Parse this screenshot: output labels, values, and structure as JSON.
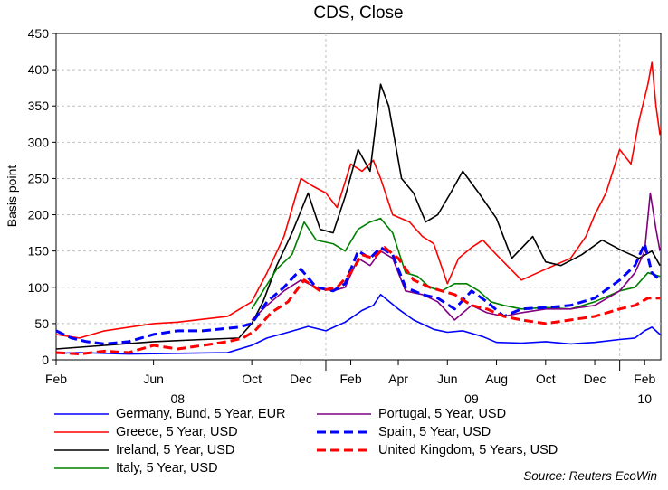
{
  "chart_data": {
    "type": "line",
    "title": "CDS, Close",
    "ylabel": "Basis point",
    "ylim": [
      0,
      450
    ],
    "yticks": [
      0,
      50,
      100,
      150,
      200,
      250,
      300,
      350,
      400,
      450
    ],
    "xlim": [
      "2008-02-01",
      "2010-02-21"
    ],
    "xticks": [
      {
        "date": "2008-02-01",
        "label": "Feb"
      },
      {
        "date": "2008-06-01",
        "label": "Jun"
      },
      {
        "date": "2008-10-01",
        "label": "Oct"
      },
      {
        "date": "2008-12-01",
        "label": "Dec"
      },
      {
        "date": "2009-02-01",
        "label": "Feb"
      },
      {
        "date": "2009-04-01",
        "label": "Apr"
      },
      {
        "date": "2009-06-01",
        "label": "Jun"
      },
      {
        "date": "2009-08-01",
        "label": "Aug"
      },
      {
        "date": "2009-10-01",
        "label": "Oct"
      },
      {
        "date": "2009-12-01",
        "label": "Dec"
      },
      {
        "date": "2010-02-01",
        "label": "Feb"
      }
    ],
    "year_labels": [
      {
        "date": "2008-07-01",
        "label": "08"
      },
      {
        "date": "2009-07-01",
        "label": "09"
      },
      {
        "date": "2010-02-01",
        "label": "10"
      }
    ],
    "grid": true,
    "legend_position": "bottom",
    "series": [
      {
        "name": "Germany, Bund, 5 Year, EUR",
        "color": "#0000ff",
        "style": "solid",
        "x": [
          "2008-02-01",
          "2008-03-01",
          "2008-05-01",
          "2008-07-01",
          "2008-09-01",
          "2008-10-01",
          "2008-10-20",
          "2008-11-15",
          "2008-12-10",
          "2009-01-01",
          "2009-01-25",
          "2009-02-15",
          "2009-03-01",
          "2009-03-10",
          "2009-04-01",
          "2009-04-20",
          "2009-05-15",
          "2009-06-01",
          "2009-06-20",
          "2009-07-15",
          "2009-08-01",
          "2009-09-01",
          "2009-10-01",
          "2009-11-01",
          "2009-12-01",
          "2010-01-01",
          "2010-01-20",
          "2010-02-01",
          "2010-02-10",
          "2010-02-20"
        ],
        "y": [
          9,
          10,
          8,
          9,
          10,
          20,
          30,
          38,
          46,
          40,
          52,
          68,
          75,
          90,
          70,
          55,
          42,
          38,
          40,
          32,
          24,
          23,
          25,
          22,
          24,
          28,
          30,
          40,
          45,
          35
        ]
      },
      {
        "name": "Greece, 5 Year, USD",
        "color": "#ff0000",
        "style": "solid",
        "x": [
          "2008-02-01",
          "2008-03-01",
          "2008-04-01",
          "2008-06-01",
          "2008-07-01",
          "2008-09-01",
          "2008-10-01",
          "2008-10-20",
          "2008-11-10",
          "2008-12-01",
          "2008-12-15",
          "2009-01-01",
          "2009-01-15",
          "2009-02-01",
          "2009-02-15",
          "2009-03-01",
          "2009-03-10",
          "2009-03-25",
          "2009-04-15",
          "2009-05-01",
          "2009-05-15",
          "2009-06-01",
          "2009-06-15",
          "2009-07-01",
          "2009-07-15",
          "2009-08-01",
          "2009-09-01",
          "2009-10-01",
          "2009-11-01",
          "2009-11-20",
          "2009-12-01",
          "2009-12-15",
          "2010-01-01",
          "2010-01-15",
          "2010-01-25",
          "2010-02-05",
          "2010-02-10",
          "2010-02-15",
          "2010-02-20"
        ],
        "y": [
          35,
          30,
          40,
          50,
          52,
          60,
          80,
          120,
          170,
          250,
          240,
          230,
          210,
          270,
          260,
          275,
          250,
          200,
          190,
          170,
          160,
          105,
          140,
          155,
          165,
          145,
          110,
          125,
          140,
          170,
          200,
          230,
          290,
          270,
          330,
          380,
          410,
          350,
          310
        ]
      },
      {
        "name": "Ireland, 5 Year, USD",
        "color": "#000000",
        "style": "solid",
        "x": [
          "2008-02-01",
          "2008-04-01",
          "2008-06-01",
          "2008-08-01",
          "2008-09-15",
          "2008-10-01",
          "2008-10-15",
          "2008-11-01",
          "2008-11-20",
          "2008-12-10",
          "2008-12-25",
          "2009-01-10",
          "2009-01-25",
          "2009-02-10",
          "2009-02-25",
          "2009-03-10",
          "2009-03-20",
          "2009-04-05",
          "2009-04-20",
          "2009-05-05",
          "2009-05-20",
          "2009-06-05",
          "2009-06-20",
          "2009-07-10",
          "2009-08-01",
          "2009-08-20",
          "2009-09-15",
          "2009-10-01",
          "2009-10-20",
          "2009-11-15",
          "2009-12-10",
          "2010-01-05",
          "2010-01-25",
          "2010-02-10",
          "2010-02-20"
        ],
        "y": [
          15,
          20,
          25,
          28,
          30,
          50,
          80,
          130,
          175,
          230,
          180,
          175,
          225,
          290,
          260,
          380,
          350,
          250,
          230,
          190,
          200,
          230,
          260,
          230,
          195,
          140,
          170,
          135,
          130,
          145,
          165,
          150,
          140,
          150,
          130
        ]
      },
      {
        "name": "Italy, 5 Year, USD",
        "color": "#008000",
        "style": "solid",
        "x": [
          "2008-10-01",
          "2008-10-15",
          "2008-11-01",
          "2008-11-20",
          "2008-12-05",
          "2008-12-20",
          "2009-01-10",
          "2009-01-25",
          "2009-02-10",
          "2009-02-25",
          "2009-03-10",
          "2009-03-25",
          "2009-04-10",
          "2009-04-25",
          "2009-05-10",
          "2009-05-25",
          "2009-06-10",
          "2009-06-25",
          "2009-07-10",
          "2009-07-25",
          "2009-08-10",
          "2009-09-01",
          "2009-10-01",
          "2009-11-01",
          "2009-12-01",
          "2010-01-01",
          "2010-01-20",
          "2010-02-05",
          "2010-02-20"
        ],
        "y": [
          70,
          95,
          125,
          145,
          190,
          165,
          160,
          150,
          180,
          190,
          195,
          175,
          120,
          115,
          100,
          95,
          105,
          105,
          95,
          80,
          75,
          70,
          72,
          70,
          80,
          95,
          100,
          120,
          115
        ]
      },
      {
        "name": "Portugal, 5 Year, USD",
        "color": "#800080",
        "style": "solid",
        "x": [
          "2008-10-01",
          "2008-10-20",
          "2008-11-10",
          "2008-12-01",
          "2008-12-20",
          "2009-01-10",
          "2009-01-25",
          "2009-02-10",
          "2009-02-25",
          "2009-03-10",
          "2009-03-25",
          "2009-04-10",
          "2009-05-01",
          "2009-05-20",
          "2009-06-10",
          "2009-07-01",
          "2009-07-20",
          "2009-08-10",
          "2009-09-01",
          "2009-10-01",
          "2009-11-01",
          "2009-12-01",
          "2010-01-01",
          "2010-01-20",
          "2010-02-01",
          "2010-02-08",
          "2010-02-15",
          "2010-02-20"
        ],
        "y": [
          55,
          75,
          95,
          110,
          100,
          95,
          100,
          140,
          130,
          150,
          140,
          95,
          90,
          80,
          55,
          75,
          65,
          60,
          65,
          70,
          70,
          75,
          95,
          120,
          150,
          230,
          180,
          150
        ]
      },
      {
        "name": "Spain, 5 Year, USD",
        "color": "#0000ff",
        "style": "dashed",
        "x": [
          "2008-02-01",
          "2008-02-20",
          "2008-03-10",
          "2008-04-01",
          "2008-05-01",
          "2008-06-01",
          "2008-07-01",
          "2008-08-01",
          "2008-09-15",
          "2008-10-01",
          "2008-10-20",
          "2008-11-10",
          "2008-12-01",
          "2008-12-20",
          "2009-01-10",
          "2009-01-25",
          "2009-02-10",
          "2009-02-25",
          "2009-03-10",
          "2009-03-25",
          "2009-04-10",
          "2009-05-01",
          "2009-05-20",
          "2009-06-10",
          "2009-07-01",
          "2009-07-20",
          "2009-08-10",
          "2009-09-01",
          "2009-10-01",
          "2009-11-01",
          "2009-12-01",
          "2010-01-01",
          "2010-01-20",
          "2010-02-01",
          "2010-02-10",
          "2010-02-20"
        ],
        "y": [
          40,
          30,
          25,
          22,
          25,
          35,
          40,
          40,
          45,
          50,
          80,
          100,
          125,
          100,
          95,
          105,
          150,
          140,
          155,
          145,
          100,
          90,
          85,
          70,
          95,
          80,
          60,
          70,
          72,
          75,
          85,
          110,
          130,
          160,
          120,
          110
        ]
      },
      {
        "name": "United Kingdom, 5 Years, USD",
        "color": "#ff0000",
        "style": "dashed",
        "x": [
          "2008-02-01",
          "2008-03-01",
          "2008-04-01",
          "2008-05-01",
          "2008-06-01",
          "2008-07-01",
          "2008-08-01",
          "2008-09-01",
          "2008-09-20",
          "2008-10-05",
          "2008-10-25",
          "2008-11-15",
          "2008-12-05",
          "2008-12-25",
          "2009-01-15",
          "2009-02-01",
          "2009-02-15",
          "2009-03-01",
          "2009-03-15",
          "2009-04-01",
          "2009-04-20",
          "2009-05-10",
          "2009-05-25",
          "2009-06-10",
          "2009-07-01",
          "2009-07-20",
          "2009-08-10",
          "2009-09-01",
          "2009-10-01",
          "2009-11-01",
          "2009-12-01",
          "2010-01-01",
          "2010-01-20",
          "2010-02-05",
          "2010-02-20"
        ],
        "y": [
          10,
          8,
          12,
          10,
          20,
          15,
          20,
          25,
          30,
          40,
          65,
          80,
          110,
          95,
          100,
          120,
          145,
          140,
          155,
          140,
          110,
          100,
          95,
          90,
          75,
          70,
          60,
          55,
          50,
          55,
          60,
          70,
          75,
          85,
          85
        ]
      }
    ]
  },
  "source_label": "Source: Reuters EcoWin"
}
